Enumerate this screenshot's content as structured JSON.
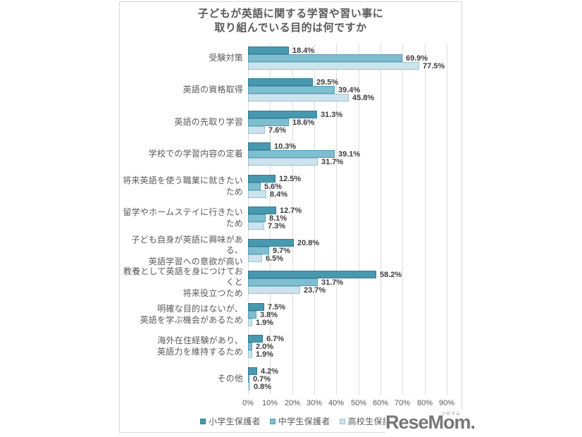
{
  "title": "子どもが英語に関する学習や習い事に\n取り組んでいる目的は何ですか",
  "logo": {
    "text": "ReseMom.",
    "ruby": "リセマム"
  },
  "colors": {
    "grid": "#dcdcdc",
    "frame_border": "#d7d7d7",
    "title_text": "#595959",
    "value_label_text": "#3c3c3c"
  },
  "chart_data": {
    "type": "bar",
    "orientation": "horizontal",
    "title": "子どもが英語に関する学習や習い事に取り組んでいる目的は何ですか",
    "categories": [
      "受験対策",
      "英語の資格取得",
      "英語の先取り学習",
      "学校での学習内容の定着",
      "将来英語を使う職業に就きたいため",
      "留学やホームステイに行きたいため",
      "子ども自身が英語に興味がある、\n英語学習への意欲が高い",
      "教養として英語を身につけておくと\n将来役立つため",
      "明確な目的はないが、\n英語を学ぶ機会があるため",
      "海外在住経験があり、\n英語力を維持するため",
      "その他"
    ],
    "series": [
      {
        "name": "小学生保護者",
        "color": "#4899af",
        "border_color": "#2f7a93",
        "values": [
          18.4,
          29.5,
          31.3,
          10.3,
          12.5,
          12.7,
          20.8,
          58.2,
          7.5,
          6.7,
          4.2
        ]
      },
      {
        "name": "中学生保護者",
        "color": "#7fbecf",
        "border_color": "#549cb4",
        "values": [
          69.9,
          39.4,
          18.6,
          39.1,
          5.6,
          8.1,
          9.7,
          31.7,
          3.8,
          2.0,
          0.7
        ]
      },
      {
        "name": "高校生保護者",
        "color": "#cce2ec",
        "border_color": "#9cc3d5",
        "values": [
          77.5,
          45.8,
          7.6,
          31.7,
          8.4,
          7.3,
          6.5,
          23.7,
          1.9,
          1.9,
          0.8
        ]
      }
    ],
    "x_ticks": [
      "0%",
      "10%",
      "20%",
      "30%",
      "40%",
      "50%",
      "60%",
      "70%",
      "80%",
      "90%"
    ],
    "xlim": [
      0,
      90
    ],
    "value_label_format": "{value}%",
    "grid": true,
    "legend_position": "bottom"
  }
}
